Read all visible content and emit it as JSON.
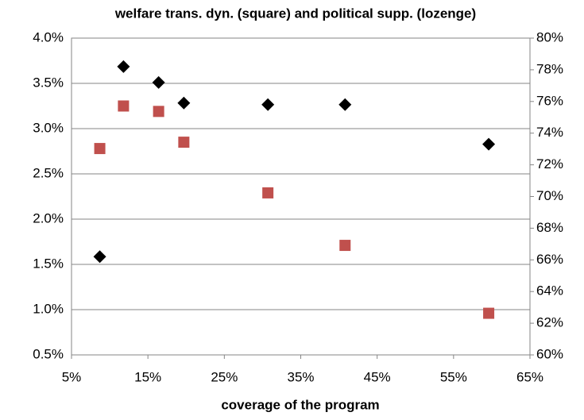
{
  "chart_data": {
    "type": "scatter",
    "title": "welfare trans. dyn. (square) and political supp. (lozenge)",
    "xlabel": "coverage of the program",
    "x": [
      8.7,
      11.8,
      16.4,
      19.7,
      30.7,
      40.8,
      59.6
    ],
    "series": [
      {
        "color": "#c0504d",
        "marker": "square",
        "axis": "y",
        "values": [
          2.78,
          3.25,
          3.19,
          2.85,
          2.29,
          1.71,
          0.96
        ]
      },
      {
        "color": "#000000",
        "marker": "diamond",
        "axis": "y2",
        "values": [
          66.2,
          78.2,
          77.2,
          75.9,
          75.8,
          75.8,
          73.3
        ]
      }
    ],
    "xlim": [
      5,
      65
    ],
    "xticks": [
      {
        "value": 5,
        "label": "5%"
      },
      {
        "value": 15,
        "label": "15%"
      },
      {
        "value": 25,
        "label": "25%"
      },
      {
        "value": 35,
        "label": "35%"
      },
      {
        "value": 45,
        "label": "45%"
      },
      {
        "value": 55,
        "label": "55%"
      },
      {
        "value": 65,
        "label": "65%"
      }
    ],
    "ylim": [
      0.5,
      4.0
    ],
    "yticks": [
      {
        "value": 0.5,
        "label": "0.5%"
      },
      {
        "value": 1.0,
        "label": "1.0%"
      },
      {
        "value": 1.5,
        "label": "1.5%"
      },
      {
        "value": 2.0,
        "label": "2.0%"
      },
      {
        "value": 2.5,
        "label": "2.5%"
      },
      {
        "value": 3.0,
        "label": "3.0%"
      },
      {
        "value": 3.5,
        "label": "3.5%"
      },
      {
        "value": 4.0,
        "label": "4.0%"
      }
    ],
    "y2lim": [
      60,
      80
    ],
    "y2ticks": [
      {
        "value": 60,
        "label": "60%"
      },
      {
        "value": 62,
        "label": "62%"
      },
      {
        "value": 64,
        "label": "64%"
      },
      {
        "value": 66,
        "label": "66%"
      },
      {
        "value": 68,
        "label": "68%"
      },
      {
        "value": 70,
        "label": "70%"
      },
      {
        "value": 72,
        "label": "72%"
      },
      {
        "value": 74,
        "label": "74%"
      },
      {
        "value": 76,
        "label": "76%"
      },
      {
        "value": 78,
        "label": "78%"
      },
      {
        "value": 80,
        "label": "80%"
      }
    ],
    "grid": true
  }
}
